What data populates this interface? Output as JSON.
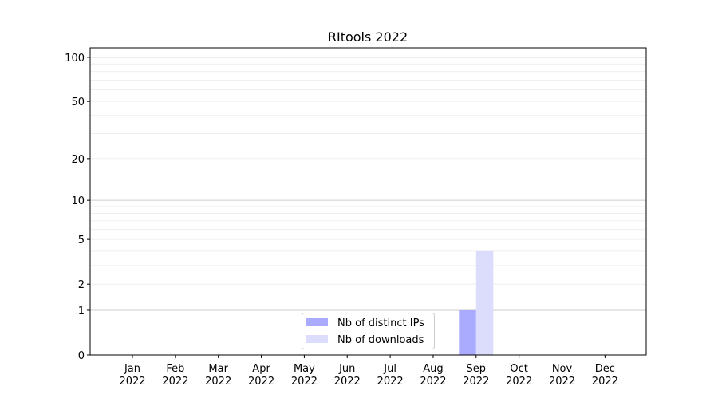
{
  "chart_data": {
    "type": "bar",
    "title": "RItools 2022",
    "xlabel": "",
    "ylabel": "",
    "yscale": "log(1+y)",
    "ylim": [
      0,
      116
    ],
    "yticks": [
      0,
      1,
      2,
      5,
      10,
      20,
      50,
      100
    ],
    "grid": true,
    "legend_position": "lower-center",
    "categories": [
      "Jan\n2022",
      "Feb\n2022",
      "Mar\n2022",
      "Apr\n2022",
      "May\n2022",
      "Jun\n2022",
      "Jul\n2022",
      "Aug\n2022",
      "Sep\n2022",
      "Oct\n2022",
      "Nov\n2022",
      "Dec\n2022"
    ],
    "series": [
      {
        "name": "Nb of distinct IPs",
        "color": "#aaaaff",
        "values": [
          0,
          0,
          0,
          0,
          0,
          0,
          0,
          0,
          1,
          0,
          0,
          0
        ]
      },
      {
        "name": "Nb of downloads",
        "color": "#dcdcfc",
        "values": [
          0,
          0,
          0,
          0,
          0,
          0,
          0,
          0,
          4,
          0,
          0,
          0
        ]
      }
    ]
  }
}
